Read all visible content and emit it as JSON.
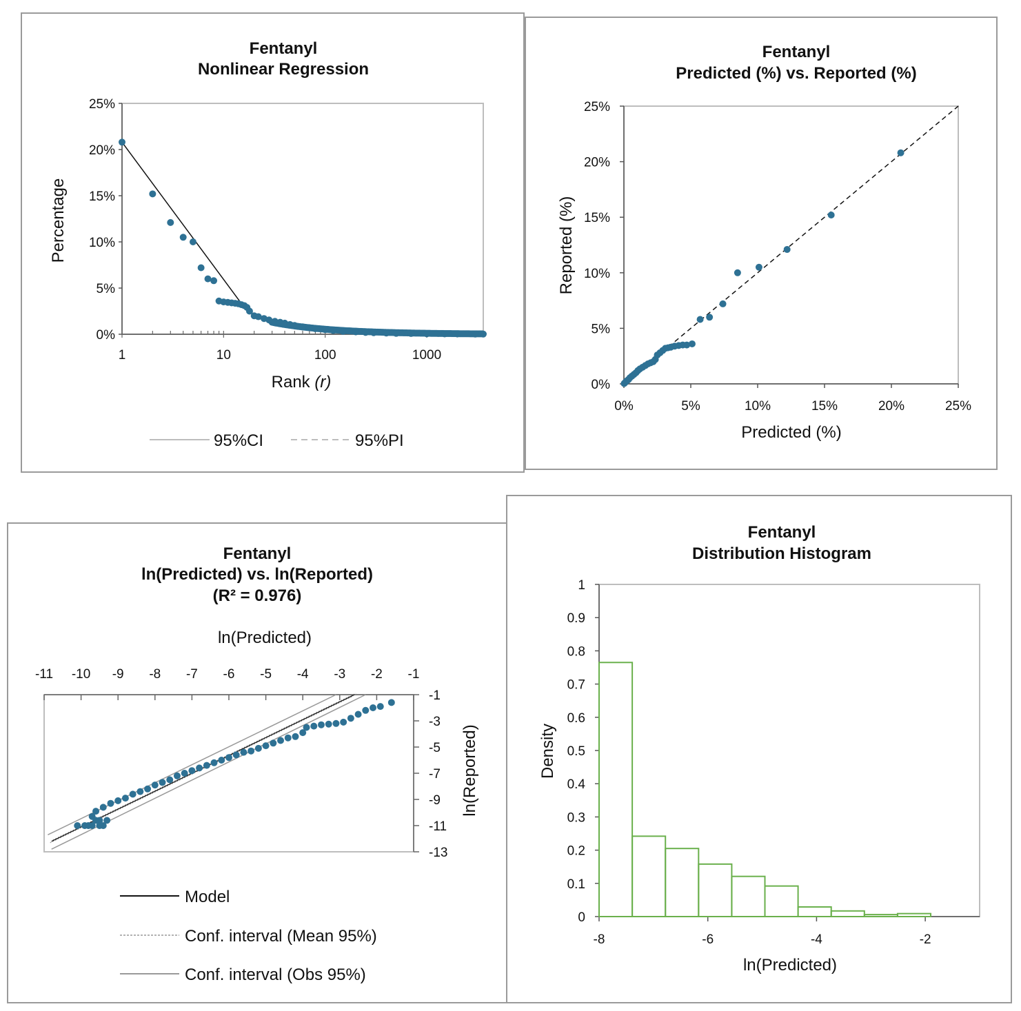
{
  "chart_data": [
    {
      "type": "scatter",
      "title": "Fentanyl",
      "subtitle": "Nonlinear Regression",
      "xlabel": "Rank",
      "xlabel_var": "r",
      "ylabel": "Percentage",
      "xscale": "log",
      "xlim": [
        1,
        3600
      ],
      "ylim": [
        0,
        25
      ],
      "xticks": [
        "1",
        "10",
        "100",
        "1000"
      ],
      "yticks": [
        "0%",
        "5%",
        "10%",
        "15%",
        "20%",
        "25%"
      ],
      "grid": false,
      "legend_position": "bottom",
      "series": [
        {
          "name": "95%CI",
          "style": "solid",
          "color": "#bdbdbd",
          "values": []
        },
        {
          "name": "95%PI",
          "style": "dashed",
          "color": "#bdbdbd",
          "values": []
        }
      ],
      "model_line": [
        [
          1,
          20.8
        ],
        [
          16,
          2.9
        ]
      ],
      "points": [
        [
          1,
          20.8
        ],
        [
          2,
          15.2
        ],
        [
          3,
          12.1
        ],
        [
          4,
          10.5
        ],
        [
          5,
          10.0
        ],
        [
          6,
          7.2
        ],
        [
          7,
          6.0
        ],
        [
          8,
          5.8
        ],
        [
          9,
          3.6
        ],
        [
          10,
          3.5
        ],
        [
          11,
          3.45
        ],
        [
          12,
          3.4
        ],
        [
          13,
          3.35
        ],
        [
          14,
          3.3
        ],
        [
          15,
          3.2
        ],
        [
          16,
          3.1
        ],
        [
          17,
          2.9
        ],
        [
          18,
          2.5
        ],
        [
          20,
          2.0
        ],
        [
          22,
          1.9
        ],
        [
          25,
          1.7
        ],
        [
          28,
          1.55
        ],
        [
          32,
          1.4
        ],
        [
          36,
          1.3
        ],
        [
          40,
          1.2
        ],
        [
          45,
          1.05
        ],
        [
          50,
          0.95
        ],
        [
          60,
          0.8
        ],
        [
          70,
          0.7
        ],
        [
          80,
          0.6
        ],
        [
          100,
          0.5
        ],
        [
          120,
          0.4
        ],
        [
          150,
          0.32
        ],
        [
          200,
          0.25
        ],
        [
          250,
          0.2
        ],
        [
          300,
          0.17
        ],
        [
          400,
          0.13
        ],
        [
          500,
          0.1
        ],
        [
          700,
          0.08
        ],
        [
          1000,
          0.05
        ],
        [
          1500,
          0.04
        ],
        [
          2000,
          0.03
        ],
        [
          3000,
          0.02
        ],
        [
          3600,
          0.02
        ]
      ],
      "marker_color": "#2e7194"
    },
    {
      "type": "scatter",
      "title": "Fentanyl",
      "subtitle": "Predicted (%) vs. Reported (%)",
      "xlabel": "Predicted (%)",
      "ylabel": "Reported (%)",
      "xlim": [
        0,
        25
      ],
      "ylim": [
        0,
        25
      ],
      "xticks": [
        "0%",
        "5%",
        "10%",
        "15%",
        "20%",
        "25%"
      ],
      "yticks": [
        "0%",
        "5%",
        "10%",
        "15%",
        "20%",
        "25%"
      ],
      "grid": false,
      "identity_line": [
        [
          0,
          0
        ],
        [
          25,
          25
        ]
      ],
      "points": [
        [
          20.7,
          20.8
        ],
        [
          15.5,
          15.2
        ],
        [
          12.2,
          12.1
        ],
        [
          10.1,
          10.5
        ],
        [
          8.5,
          10.0
        ],
        [
          7.4,
          7.2
        ],
        [
          6.4,
          6.0
        ],
        [
          5.7,
          5.8
        ],
        [
          5.1,
          3.6
        ],
        [
          4.7,
          3.5
        ],
        [
          4.4,
          3.5
        ],
        [
          4.1,
          3.45
        ],
        [
          3.8,
          3.4
        ],
        [
          3.5,
          3.3
        ],
        [
          3.3,
          3.25
        ],
        [
          3.1,
          3.2
        ],
        [
          2.9,
          3.0
        ],
        [
          2.7,
          2.8
        ],
        [
          2.5,
          2.6
        ],
        [
          2.35,
          2.2
        ],
        [
          2.2,
          2.0
        ],
        [
          2.0,
          1.9
        ],
        [
          1.8,
          1.8
        ],
        [
          1.6,
          1.65
        ],
        [
          1.4,
          1.5
        ],
        [
          1.2,
          1.35
        ],
        [
          1.05,
          1.2
        ],
        [
          0.9,
          1.0
        ],
        [
          0.75,
          0.85
        ],
        [
          0.6,
          0.7
        ],
        [
          0.45,
          0.55
        ],
        [
          0.35,
          0.4
        ],
        [
          0.25,
          0.3
        ],
        [
          0.15,
          0.2
        ],
        [
          0.08,
          0.1
        ],
        [
          0.02,
          0.03
        ]
      ],
      "marker_color": "#2e7194"
    },
    {
      "type": "scatter",
      "title": "Fentanyl",
      "subtitle": "ln(Predicted) vs. ln(Reported)",
      "note": "(R² = 0.976)",
      "xlabel": "ln(Predicted)",
      "ylabel": "ln(Reported)",
      "xlim": [
        -11,
        -1
      ],
      "ylim": [
        -13,
        -1
      ],
      "xticks": [
        "-11",
        "-10",
        "-9",
        "-8",
        "-7",
        "-6",
        "-5",
        "-4",
        "-3",
        "-2",
        "-1"
      ],
      "yticks": [
        "-1",
        "-3",
        "-5",
        "-7",
        "-9",
        "-11",
        "-13"
      ],
      "grid": false,
      "legend_position": "bottom",
      "series": [
        {
          "name": "Model",
          "style": "solid",
          "color": "#111111",
          "values": []
        },
        {
          "name": "Conf. interval (Mean 95%)",
          "style": "dotted",
          "color": "#888888",
          "values": []
        },
        {
          "name": "Conf. interval (Obs 95%)",
          "style": "solid",
          "color": "#999999",
          "values": []
        }
      ],
      "model_line": [
        [
          -10.8,
          -12.2
        ],
        [
          -2.6,
          -1.0
        ]
      ],
      "obs_upper": [
        [
          -10.9,
          -11.7
        ],
        [
          -3.1,
          -1.0
        ]
      ],
      "obs_lower": [
        [
          -10.8,
          -12.8
        ],
        [
          -2.3,
          -1.0
        ]
      ],
      "points": [
        [
          -1.6,
          -1.6
        ],
        [
          -1.9,
          -1.9
        ],
        [
          -2.1,
          -2.0
        ],
        [
          -2.3,
          -2.2
        ],
        [
          -2.5,
          -2.5
        ],
        [
          -2.7,
          -2.8
        ],
        [
          -2.9,
          -3.1
        ],
        [
          -3.1,
          -3.2
        ],
        [
          -3.3,
          -3.25
        ],
        [
          -3.5,
          -3.3
        ],
        [
          -3.7,
          -3.4
        ],
        [
          -3.9,
          -3.5
        ],
        [
          -4.0,
          -3.9
        ],
        [
          -4.2,
          -4.2
        ],
        [
          -4.4,
          -4.3
        ],
        [
          -4.6,
          -4.5
        ],
        [
          -4.8,
          -4.7
        ],
        [
          -5.0,
          -4.9
        ],
        [
          -5.2,
          -5.1
        ],
        [
          -5.4,
          -5.3
        ],
        [
          -5.6,
          -5.4
        ],
        [
          -5.8,
          -5.6
        ],
        [
          -6.0,
          -5.8
        ],
        [
          -6.2,
          -6.0
        ],
        [
          -6.4,
          -6.2
        ],
        [
          -6.6,
          -6.4
        ],
        [
          -6.8,
          -6.6
        ],
        [
          -7.0,
          -6.8
        ],
        [
          -7.2,
          -7.0
        ],
        [
          -7.4,
          -7.2
        ],
        [
          -7.6,
          -7.5
        ],
        [
          -7.8,
          -7.7
        ],
        [
          -8.0,
          -7.9
        ],
        [
          -8.2,
          -8.2
        ],
        [
          -8.4,
          -8.4
        ],
        [
          -8.6,
          -8.6
        ],
        [
          -8.8,
          -8.9
        ],
        [
          -9.0,
          -9.1
        ],
        [
          -9.2,
          -9.3
        ],
        [
          -9.4,
          -9.6
        ],
        [
          -9.6,
          -9.9
        ],
        [
          -9.7,
          -10.3
        ],
        [
          -9.5,
          -10.6
        ],
        [
          -9.3,
          -10.6
        ],
        [
          -9.6,
          -10.6
        ],
        [
          -9.5,
          -11.0
        ],
        [
          -9.7,
          -11.0
        ],
        [
          -9.9,
          -11.0
        ],
        [
          -10.1,
          -11.0
        ],
        [
          -9.4,
          -11.0
        ],
        [
          -9.8,
          -11.0
        ]
      ],
      "marker_color": "#2e7194"
    },
    {
      "type": "bar",
      "subtype": "histogram",
      "title": "Fentanyl",
      "subtitle": "Distribution Histogram",
      "xlabel": "ln(Predicted)",
      "ylabel": "Density",
      "xlim": [
        -8,
        -1
      ],
      "ylim": [
        0,
        1
      ],
      "xticks": [
        "-8",
        "-6",
        "-4",
        "-2"
      ],
      "yticks": [
        "0",
        "0.1",
        "0.2",
        "0.3",
        "0.4",
        "0.5",
        "0.6",
        "0.7",
        "0.8",
        "0.9",
        "1"
      ],
      "grid": false,
      "bin_edges": [
        -8.0,
        -7.39,
        -6.78,
        -6.17,
        -5.56,
        -4.95,
        -4.34,
        -3.73,
        -3.12,
        -2.51,
        -1.9
      ],
      "values": [
        0.765,
        0.242,
        0.205,
        0.158,
        0.121,
        0.092,
        0.029,
        0.017,
        0.006,
        0.009
      ],
      "bar_color": "#6ab04c"
    }
  ]
}
